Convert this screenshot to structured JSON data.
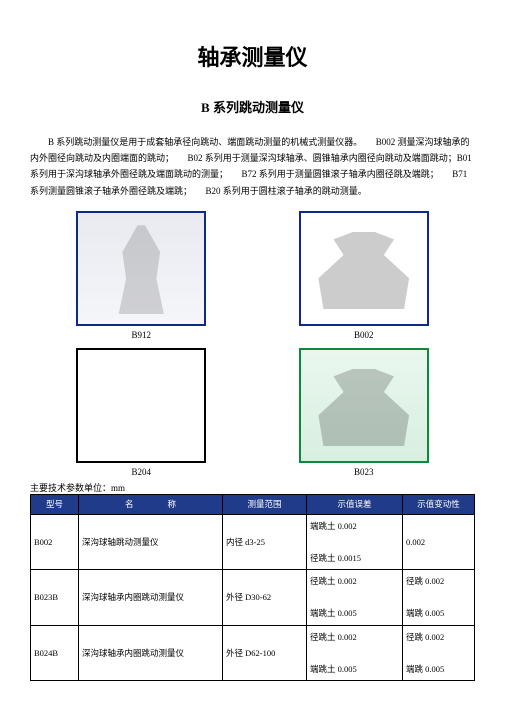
{
  "title": "轴承测量仪",
  "subtitle": "B 系列跳动测量仪",
  "intro": "B 系列跳动测量仪是用于成套轴承径向跳动、端面跳动测量的机械式测量仪器。　　B002 测量深沟球轴承的内外圈径向跳动及内圈端面的跳动；　　B02 系列用于测量深沟球轴承、圆锥轴承内圈径向跳动及端面跳动；B01 系列用于深沟球轴承外圈径跳及端面跳动的测量；　　B72 系列用于测量圆锥滚子轴承内圈径跳及端跳；　　B71 系列测量圆锥滚子轴承外圈径跳及端跳；　　B20 系列用于圆柱滚子轴承的跳动测量。",
  "images": [
    {
      "label": "B912",
      "class": "b912"
    },
    {
      "label": "B002",
      "class": "b002"
    },
    {
      "label": "B204",
      "class": "b204"
    },
    {
      "label": "B023",
      "class": "b023"
    }
  ],
  "tableCaption": "主要技术参数单位：mm",
  "headers": [
    "型号",
    "名　　　　称",
    "测量范围",
    "示值误差",
    "示值变动性"
  ],
  "rows": [
    {
      "model": "B002",
      "name": "深沟球轴跳动测量仪",
      "range": "内径 d3-25",
      "err": [
        "端跳土 0.002",
        "",
        "径跳土 0.0015"
      ],
      "var": [
        "",
        "0.002",
        ""
      ]
    },
    {
      "model": "B023B",
      "name": "深沟球轴承内圈跳动测量仪",
      "range": "外径 D30-62",
      "err": [
        "径跳土 0.002",
        "",
        "端跳土 0.005"
      ],
      "var": [
        "径跳 0.002",
        "",
        "端跳 0.005"
      ]
    },
    {
      "model": "B024B",
      "name": "深沟球轴承内圈跳动测量仪",
      "range": "外径 D62-100",
      "err": [
        "径跳土 0.002",
        "",
        "端跳土 0.005"
      ],
      "var": [
        "径跳 0.002",
        "",
        "端跳 0.005"
      ]
    }
  ],
  "colors": {
    "headerBg": "#1f3b8a",
    "headerText": "#ffffff",
    "border": "#000000",
    "blueBorder": "#0e2a88",
    "greenBorder": "#0a8a3a"
  }
}
